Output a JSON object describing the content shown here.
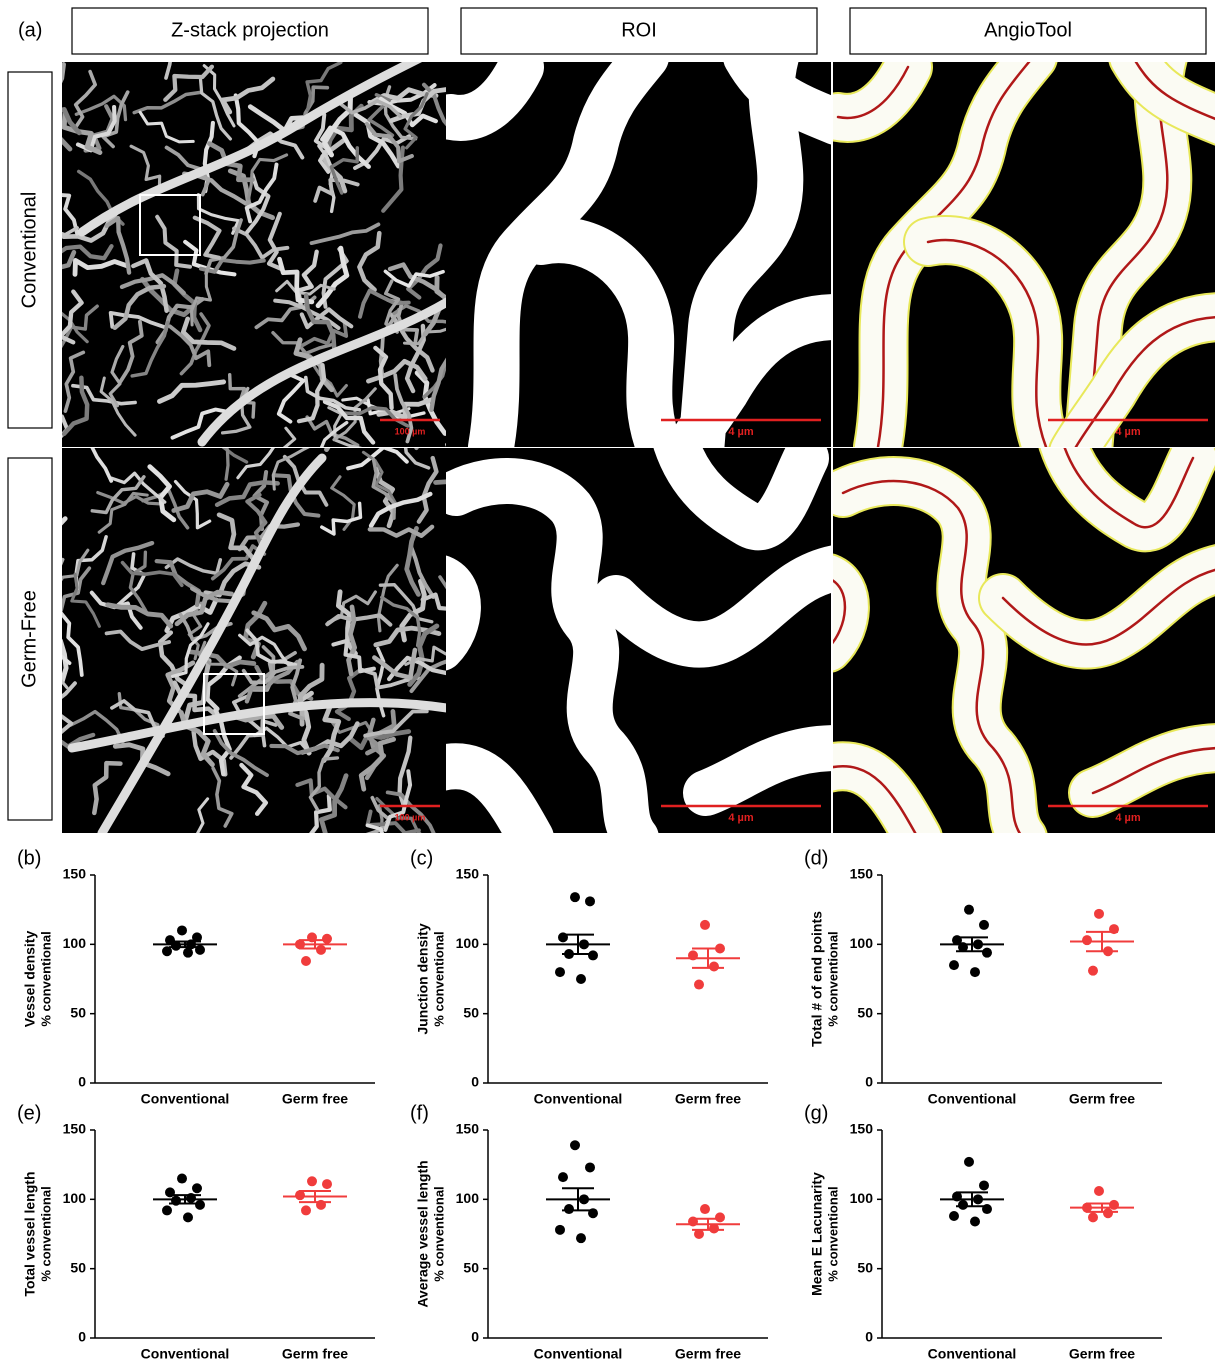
{
  "panel_a": {
    "label": "(a)",
    "columns": [
      "Z-stack projection",
      "ROI",
      "AngioTool"
    ],
    "rows": [
      "Conventional",
      "Germ-Free"
    ],
    "scale_bars": [
      "100 µm",
      "4 µm",
      "4 µm"
    ]
  },
  "chart_data": [
    {
      "type": "strip",
      "label": "(b)",
      "ylabel": "Vessel density",
      "ylabel_sub": "% conventional",
      "categories": [
        "Conventional",
        "Germ free"
      ],
      "ylim": [
        0,
        150
      ],
      "yticks": [
        0,
        50,
        100,
        150
      ],
      "groups": [
        {
          "color": "#000000",
          "values": [
            110,
            105,
            103,
            100,
            99,
            96,
            95,
            94
          ],
          "mean": 100,
          "sem": 2
        },
        {
          "color": "#f03c3c",
          "values": [
            105,
            104,
            100,
            96,
            88
          ],
          "mean": 100,
          "sem": 3
        }
      ]
    },
    {
      "type": "strip",
      "label": "(c)",
      "ylabel": "Junction density",
      "ylabel_sub": "% conventional",
      "categories": [
        "Conventional",
        "Germ free"
      ],
      "ylim": [
        0,
        150
      ],
      "yticks": [
        0,
        50,
        100,
        150
      ],
      "groups": [
        {
          "color": "#000000",
          "values": [
            134,
            131,
            105,
            100,
            93,
            92,
            80,
            75
          ],
          "mean": 100,
          "sem": 7
        },
        {
          "color": "#f03c3c",
          "values": [
            114,
            97,
            92,
            84,
            71
          ],
          "mean": 90,
          "sem": 7
        }
      ]
    },
    {
      "type": "strip",
      "label": "(d)",
      "ylabel": "Total # of end points",
      "ylabel_sub": "% conventional",
      "categories": [
        "Conventional",
        "Germ free"
      ],
      "ylim": [
        0,
        150
      ],
      "yticks": [
        0,
        50,
        100,
        150
      ],
      "groups": [
        {
          "color": "#000000",
          "values": [
            125,
            114,
            103,
            100,
            98,
            94,
            85,
            80
          ],
          "mean": 100,
          "sem": 5
        },
        {
          "color": "#f03c3c",
          "values": [
            122,
            111,
            103,
            95,
            81
          ],
          "mean": 102,
          "sem": 7
        }
      ]
    },
    {
      "type": "strip",
      "label": "(e)",
      "ylabel": "Total vessel length",
      "ylabel_sub": "% conventional",
      "categories": [
        "Conventional",
        "Germ free"
      ],
      "ylim": [
        0,
        150
      ],
      "yticks": [
        0,
        50,
        100,
        150
      ],
      "groups": [
        {
          "color": "#000000",
          "values": [
            115,
            108,
            105,
            101,
            99,
            96,
            92,
            87
          ],
          "mean": 100,
          "sem": 3
        },
        {
          "color": "#f03c3c",
          "values": [
            113,
            111,
            103,
            96,
            92
          ],
          "mean": 102,
          "sem": 4
        }
      ]
    },
    {
      "type": "strip",
      "label": "(f)",
      "ylabel": "Average vessel length",
      "ylabel_sub": "% conventional",
      "categories": [
        "Conventional",
        "Germ free"
      ],
      "ylim": [
        0,
        150
      ],
      "yticks": [
        0,
        50,
        100,
        150
      ],
      "groups": [
        {
          "color": "#000000",
          "values": [
            139,
            123,
            116,
            100,
            93,
            90,
            78,
            72
          ],
          "mean": 100,
          "sem": 8
        },
        {
          "color": "#f03c3c",
          "values": [
            93,
            87,
            84,
            79,
            75
          ],
          "mean": 82,
          "sem": 4
        }
      ]
    },
    {
      "type": "strip",
      "label": "(g)",
      "ylabel": "Mean E Lacunarity",
      "ylabel_sub": "% conventional",
      "categories": [
        "Conventional",
        "Germ free"
      ],
      "ylim": [
        0,
        150
      ],
      "yticks": [
        0,
        50,
        100,
        150
      ],
      "groups": [
        {
          "color": "#000000",
          "values": [
            127,
            110,
            102,
            100,
            96,
            93,
            88,
            84
          ],
          "mean": 100,
          "sem": 5
        },
        {
          "color": "#f03c3c",
          "values": [
            106,
            96,
            94,
            90,
            87
          ],
          "mean": 94,
          "sem": 3
        }
      ]
    }
  ]
}
